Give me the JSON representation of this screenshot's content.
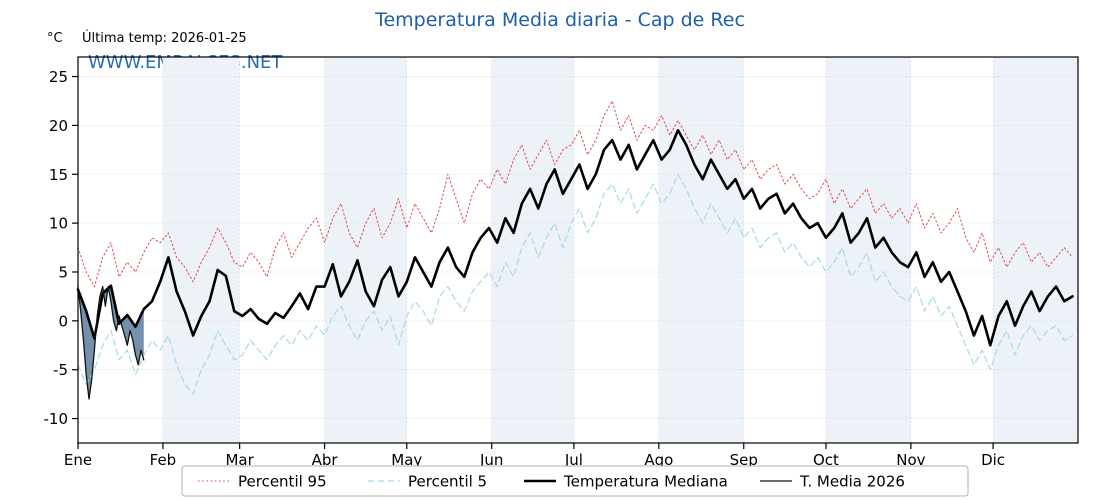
{
  "title": "Temperatura Media diaria - Cap de Rec",
  "units": "°C",
  "last_temp": "Última temp: 2026-01-25",
  "watermark": "WWW.EMBALSES.NET",
  "colors": {
    "title": "#1e5fa8",
    "watermark": "#2a6db5",
    "percentil95": "#e04b4b",
    "percentil5": "#a6d9ea",
    "mediana": "#000000",
    "media2026": "#111111",
    "fill_between": "#5a7e9e",
    "month_band": "#edf2f8",
    "grid": "#c9c9c9",
    "axis": "#000000"
  },
  "chart_data": {
    "type": "line",
    "title": "Temperatura Media diaria - Cap de Rec",
    "xlabel": "",
    "ylabel": "°C",
    "ylim": [
      -12.5,
      27
    ],
    "yticks": [
      -10,
      -5,
      0,
      5,
      10,
      15,
      20,
      25
    ],
    "ytick_labels": [
      "-10",
      "-5",
      "0",
      "5",
      "10",
      "15",
      "20",
      "25"
    ],
    "month_labels": [
      "Ene",
      "Feb",
      "Mar",
      "Abr",
      "May",
      "Jun",
      "Jul",
      "Ago",
      "Sep",
      "Oct",
      "Nov",
      "Dic"
    ],
    "month_start_days": [
      0,
      31,
      59,
      90,
      120,
      151,
      181,
      212,
      243,
      273,
      304,
      334
    ],
    "days_total": 365,
    "grid": true,
    "legend_position": "bottom",
    "legend": [
      "Percentil 95",
      "Percentil 5",
      "Temperatura Mediana",
      "T. Media 2026"
    ],
    "series": [
      {
        "name": "Percentil 95",
        "style": "dotted",
        "width": 1,
        "step": 3,
        "color_key": "percentil95",
        "values": [
          7.5,
          5.0,
          3.5,
          6.5,
          8.0,
          4.5,
          6.0,
          5.0,
          7.0,
          8.5,
          8.0,
          9.0,
          6.5,
          5.5,
          4.0,
          6.0,
          7.5,
          9.5,
          8.0,
          6.0,
          5.5,
          7.0,
          6.0,
          4.5,
          7.5,
          9.0,
          6.5,
          8.0,
          9.5,
          10.5,
          8.0,
          10.5,
          12.0,
          9.0,
          7.5,
          10.0,
          11.5,
          8.5,
          10.0,
          12.5,
          9.5,
          12.0,
          10.5,
          9.0,
          11.5,
          15.0,
          12.5,
          10.0,
          13.0,
          14.5,
          13.5,
          15.5,
          14.0,
          16.5,
          18.0,
          15.5,
          17.0,
          18.5,
          16.0,
          17.5,
          18.0,
          19.5,
          17.0,
          18.5,
          21.0,
          22.5,
          19.5,
          21.0,
          18.5,
          20.0,
          19.5,
          21.0,
          19.0,
          20.5,
          19.0,
          17.5,
          19.0,
          17.0,
          18.5,
          16.5,
          17.5,
          15.5,
          16.5,
          14.5,
          15.5,
          16.0,
          14.0,
          15.0,
          13.5,
          12.5,
          13.0,
          14.5,
          12.0,
          13.5,
          11.5,
          12.5,
          13.5,
          11.0,
          12.0,
          10.5,
          11.5,
          10.0,
          12.0,
          9.5,
          11.0,
          9.0,
          10.0,
          11.5,
          8.5,
          7.0,
          9.0,
          6.0,
          7.5,
          5.5,
          7.0,
          8.0,
          6.0,
          7.0,
          5.5,
          6.5,
          7.5,
          6.5
        ]
      },
      {
        "name": "Percentil 5",
        "style": "dashed",
        "width": 1.2,
        "step": 3,
        "color_key": "percentil5",
        "values": [
          -4.5,
          -6.5,
          -5.0,
          -2.5,
          -1.0,
          -4.0,
          -3.0,
          -5.5,
          -3.5,
          -2.0,
          -3.0,
          -1.5,
          -4.5,
          -6.5,
          -7.5,
          -5.0,
          -3.5,
          -1.0,
          -2.5,
          -4.0,
          -3.5,
          -2.0,
          -3.0,
          -4.0,
          -2.5,
          -1.5,
          -2.5,
          -1.0,
          -2.0,
          -0.5,
          -1.5,
          0.5,
          1.5,
          -0.5,
          -2.0,
          0.0,
          1.0,
          -1.0,
          0.5,
          -2.5,
          0.5,
          2.0,
          1.0,
          -0.5,
          2.5,
          3.5,
          2.0,
          1.0,
          3.0,
          4.0,
          5.0,
          3.5,
          6.0,
          4.5,
          7.5,
          9.0,
          6.5,
          8.5,
          10.0,
          7.5,
          10.0,
          11.5,
          9.0,
          10.5,
          13.0,
          14.0,
          12.0,
          13.5,
          11.0,
          12.5,
          14.0,
          12.0,
          13.0,
          15.0,
          13.5,
          11.5,
          10.0,
          12.0,
          10.5,
          9.0,
          10.5,
          8.5,
          9.5,
          7.5,
          8.5,
          9.0,
          7.0,
          8.0,
          6.5,
          5.5,
          6.5,
          5.0,
          6.0,
          7.5,
          4.5,
          5.5,
          7.0,
          4.0,
          5.0,
          3.5,
          2.5,
          2.0,
          3.5,
          1.0,
          2.5,
          0.5,
          1.5,
          -0.5,
          -2.5,
          -4.5,
          -3.0,
          -5.0,
          -2.5,
          -1.0,
          -3.5,
          -1.5,
          -0.5,
          -2.0,
          -1.0,
          -0.5,
          -2.0,
          -1.5
        ]
      },
      {
        "name": "Temperatura Mediana",
        "style": "solid",
        "width": 2.6,
        "step": 3,
        "color_key": "mediana",
        "values": [
          3.2,
          1.0,
          -1.8,
          2.8,
          3.6,
          -0.3,
          0.6,
          -0.6,
          1.2,
          2.0,
          4.0,
          6.5,
          3.0,
          1.0,
          -1.5,
          0.5,
          2.0,
          5.2,
          4.6,
          1.0,
          0.5,
          1.2,
          0.2,
          -0.3,
          0.8,
          0.3,
          1.5,
          2.8,
          1.2,
          3.5,
          3.5,
          5.8,
          2.5,
          4.0,
          6.2,
          3.0,
          1.5,
          4.2,
          5.5,
          2.5,
          4.0,
          6.5,
          5.0,
          3.5,
          6.0,
          7.5,
          5.5,
          4.5,
          7.0,
          8.5,
          9.5,
          8.0,
          10.5,
          9.0,
          12.0,
          13.5,
          11.5,
          14.0,
          15.5,
          13.0,
          14.5,
          16.0,
          13.5,
          15.0,
          17.5,
          18.5,
          16.5,
          18.0,
          15.5,
          17.0,
          18.5,
          16.5,
          17.5,
          19.5,
          18.0,
          16.0,
          14.5,
          16.5,
          15.0,
          13.5,
          14.5,
          12.5,
          13.5,
          11.5,
          12.5,
          13.0,
          11.0,
          12.0,
          10.5,
          9.5,
          10.0,
          8.5,
          9.5,
          11.0,
          8.0,
          9.0,
          10.5,
          7.5,
          8.5,
          7.0,
          6.0,
          5.5,
          7.0,
          4.5,
          6.0,
          4.0,
          5.0,
          3.0,
          1.0,
          -1.5,
          0.5,
          -2.5,
          0.5,
          2.0,
          -0.5,
          1.5,
          3.0,
          1.0,
          2.5,
          3.5,
          2.0,
          2.5
        ]
      },
      {
        "name": "T. Media 2026",
        "style": "solid",
        "width": 1.3,
        "step": 1,
        "color_key": "media2026",
        "values": [
          3.5,
          1.0,
          -2.0,
          -5.5,
          -8.0,
          -6.0,
          -3.0,
          0.5,
          2.5,
          3.5,
          1.5,
          3.5,
          2.0,
          0.0,
          -1.0,
          0.5,
          -0.5,
          -1.5,
          -2.5,
          -1.0,
          -2.0,
          -3.5,
          -4.5,
          -3.0,
          -4.0
        ]
      }
    ],
    "fill_between": {
      "series_a": "Temperatura Mediana",
      "series_b": "T. Media 2026",
      "day_range": [
        0,
        24
      ],
      "opacity": 0.85
    }
  }
}
